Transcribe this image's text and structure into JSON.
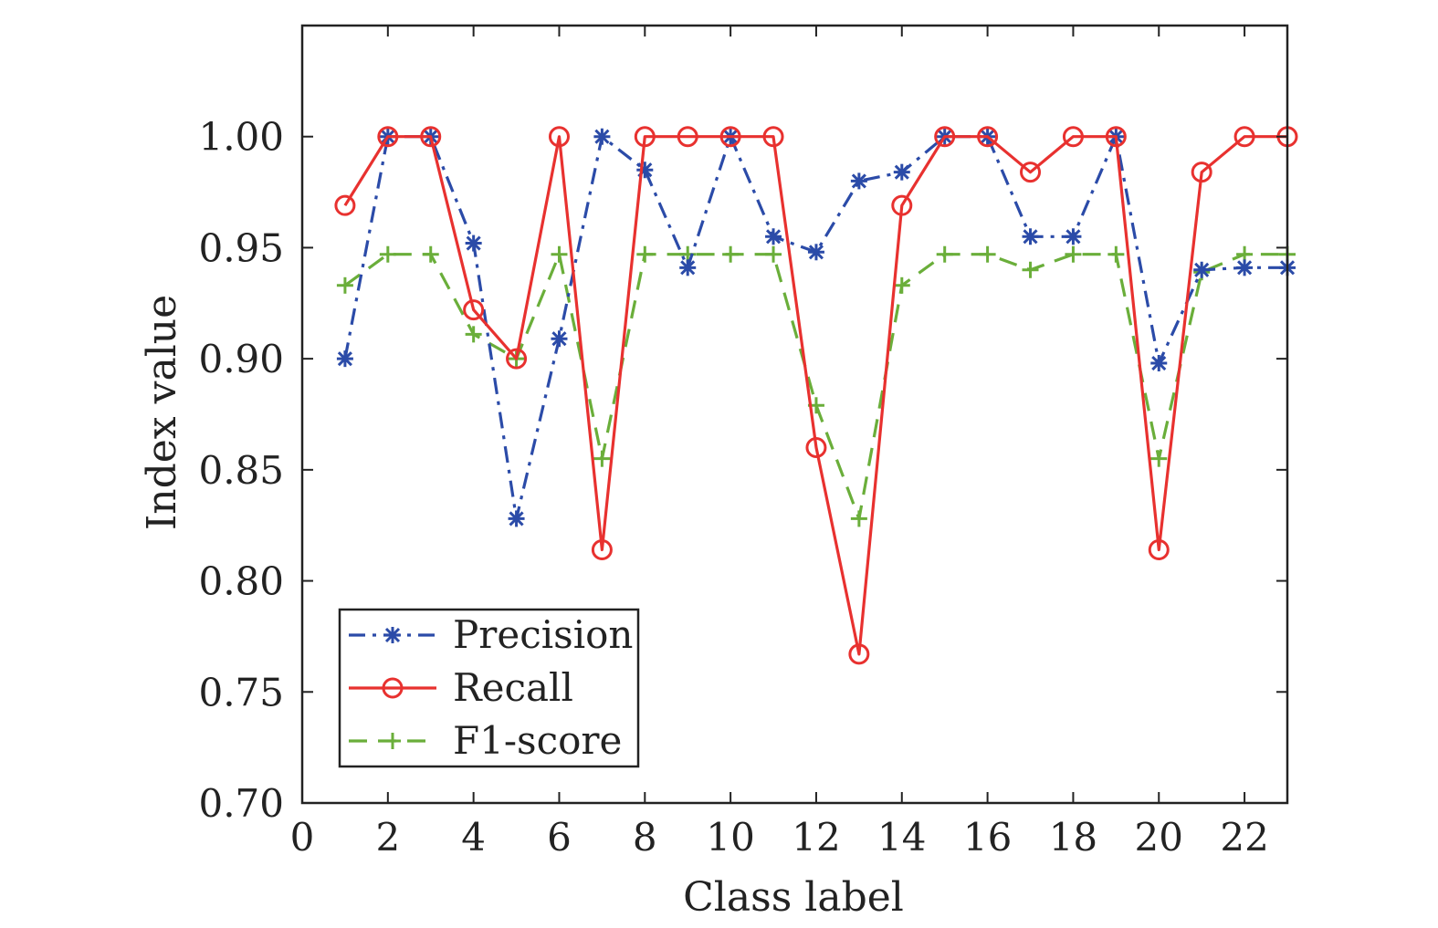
{
  "chart_data": {
    "type": "line",
    "title": "",
    "xlabel": "Class label",
    "ylabel": "Index value",
    "xlim": [
      0,
      23
    ],
    "ylim": [
      0.7,
      1.05
    ],
    "xticks": [
      0,
      2,
      4,
      6,
      8,
      10,
      12,
      14,
      16,
      18,
      20,
      22
    ],
    "xtick_labels": [
      "0",
      "2",
      "4",
      "6",
      "8",
      "10",
      "12",
      "14",
      "16",
      "18",
      "20",
      "22"
    ],
    "yticks": [
      0.7,
      0.75,
      0.8,
      0.85,
      0.9,
      0.95,
      1.0
    ],
    "ytick_labels": [
      "0.70",
      "0.75",
      "0.80",
      "0.85",
      "0.90",
      "0.95",
      "1.00"
    ],
    "grid": false,
    "legend_position": "bottom-left",
    "x": [
      1,
      2,
      3,
      4,
      5,
      6,
      7,
      8,
      9,
      10,
      11,
      12,
      13,
      14,
      15,
      16,
      17,
      18,
      19,
      20,
      21,
      22,
      23
    ],
    "series": [
      {
        "name": "Precision",
        "color": "#2b4ba8",
        "line_style": "dash-dot",
        "marker": "asterisk",
        "values": [
          0.9,
          1.0,
          1.0,
          0.952,
          0.828,
          0.909,
          1.0,
          0.985,
          0.941,
          1.0,
          0.955,
          0.948,
          0.98,
          0.984,
          1.0,
          1.0,
          0.955,
          0.955,
          1.0,
          0.898,
          0.94,
          0.941,
          0.941
        ]
      },
      {
        "name": "Recall",
        "color": "#e8312f",
        "line_style": "solid",
        "marker": "circle",
        "values": [
          0.969,
          1.0,
          1.0,
          0.922,
          0.9,
          1.0,
          0.814,
          1.0,
          1.0,
          1.0,
          1.0,
          0.86,
          0.767,
          0.969,
          1.0,
          1.0,
          0.984,
          1.0,
          1.0,
          0.814,
          0.984,
          1.0,
          1.0
        ]
      },
      {
        "name": "F1-score",
        "color": "#6aae3a",
        "line_style": "dashed",
        "marker": "plus",
        "values": [
          0.933,
          0.947,
          0.947,
          0.911,
          0.9,
          0.947,
          0.855,
          0.947,
          0.947,
          0.947,
          0.947,
          0.879,
          0.828,
          0.933,
          0.947,
          0.947,
          0.94,
          0.947,
          0.947,
          0.855,
          0.939,
          0.947,
          0.947
        ]
      }
    ]
  }
}
